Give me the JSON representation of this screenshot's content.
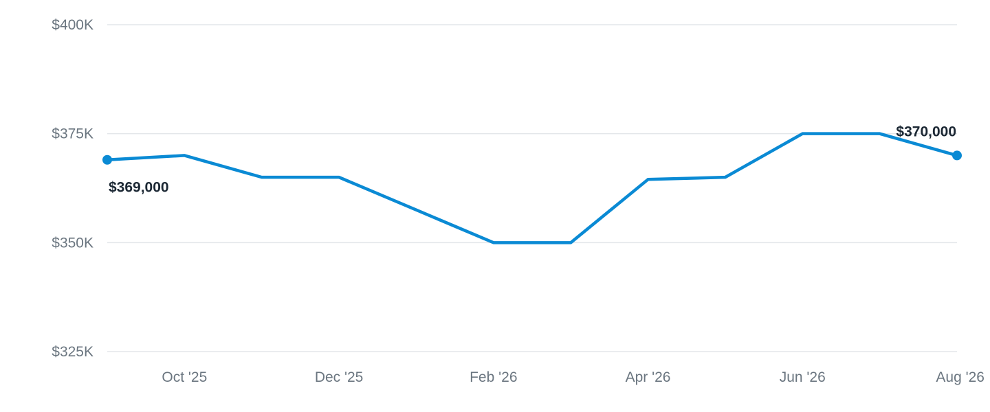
{
  "chart_data": {
    "type": "line",
    "x": [
      "Sep '25",
      "Oct '25",
      "Nov '25",
      "Dec '25",
      "Jan '26",
      "Feb '26",
      "Mar '26",
      "Apr '26",
      "May '26",
      "Jun '26",
      "Jul '26",
      "Aug '26"
    ],
    "series": [
      {
        "values": [
          369000,
          370000,
          365000,
          365000,
          357500,
          350000,
          350000,
          364500,
          365000,
          375000,
          375000,
          370000
        ]
      }
    ],
    "x_tick_labels": [
      "Oct '25",
      "Dec '25",
      "Feb '26",
      "Apr '26",
      "Jun '26",
      "Aug '26"
    ],
    "y_tick_labels": [
      "$400K",
      "$375K",
      "$350K",
      "$325K"
    ],
    "y_ticks": [
      400000,
      375000,
      350000,
      325000
    ],
    "ylim": [
      325000,
      400000
    ],
    "annotations": [
      {
        "x": "Sep '25",
        "y": 369000,
        "text": "$369,000"
      },
      {
        "x": "Aug '26",
        "y": 370000,
        "text": "$370,000"
      }
    ],
    "grid": true,
    "line_color": "#0a8ad4",
    "grid_color": "#e3e6ea",
    "title": "",
    "xlabel": "",
    "ylabel": ""
  }
}
